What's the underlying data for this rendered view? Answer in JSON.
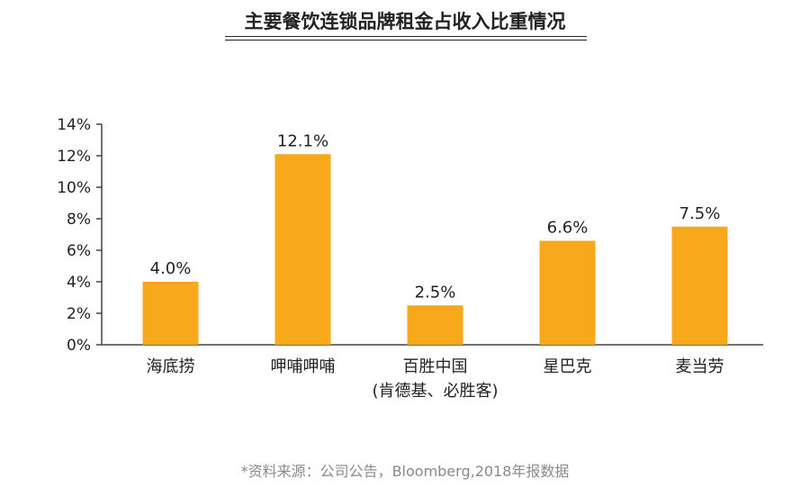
{
  "title": "主要餐饮连锁品牌租金占收入比重情况",
  "source": "*资料来源：公司公告，Bloomberg,2018年报数据",
  "colors": {
    "bar": "#F7A81B",
    "axis": "#444444",
    "text": "#222222"
  },
  "chart_data": {
    "type": "bar",
    "categories": [
      [
        "海底捞"
      ],
      [
        "呷哺呷哺"
      ],
      [
        "百胜中国",
        "(肯德基、必胜客)"
      ],
      [
        "星巴克"
      ],
      [
        "麦当劳"
      ]
    ],
    "values": [
      4.0,
      12.1,
      2.5,
      6.6,
      7.5
    ],
    "value_labels": [
      "4.0%",
      "12.1%",
      "2.5%",
      "6.6%",
      "7.5%"
    ],
    "yticks": [
      0,
      2,
      4,
      6,
      8,
      10,
      12,
      14
    ],
    "ytick_labels": [
      "0%",
      "2%",
      "4%",
      "6%",
      "8%",
      "10%",
      "12%",
      "14%"
    ],
    "ylim": [
      0,
      14
    ],
    "grid": false,
    "legend": "none"
  }
}
